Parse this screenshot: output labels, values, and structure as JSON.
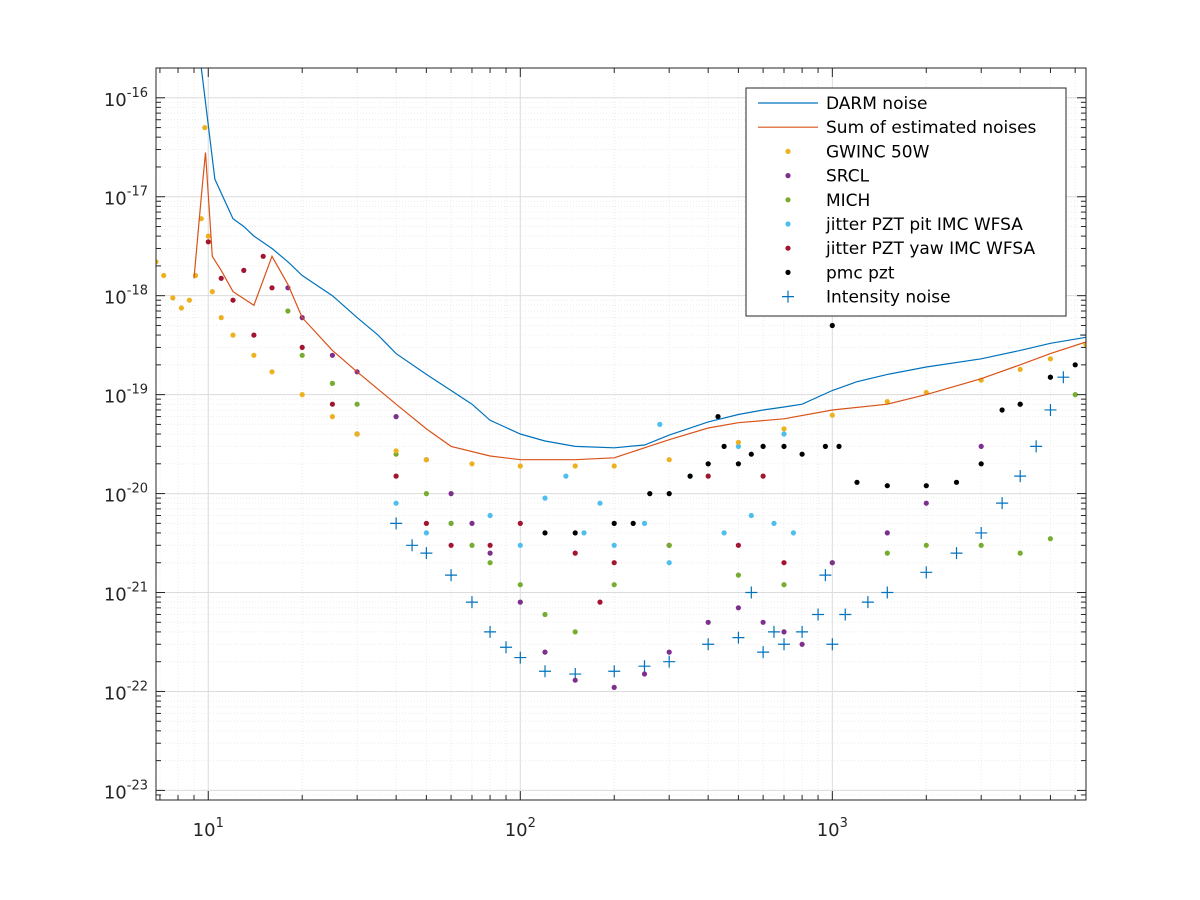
{
  "chart_data": {
    "type": "line",
    "title": "",
    "xlabel": "",
    "ylabel": "",
    "x_scale": "log",
    "y_scale": "log",
    "xlim": [
      6.8,
      6500
    ],
    "ylim": [
      8e-24,
      2e-16
    ],
    "grid": true,
    "minor_grid": true,
    "legend_position": "top-right",
    "x_ticks": [
      {
        "value": 10,
        "base": "10",
        "exp": "1"
      },
      {
        "value": 100,
        "base": "10",
        "exp": "2"
      },
      {
        "value": 1000,
        "base": "10",
        "exp": "3"
      }
    ],
    "y_ticks": [
      {
        "value": 1e-16,
        "base": "10",
        "exp": "-16"
      },
      {
        "value": 1e-17,
        "base": "10",
        "exp": "-17"
      },
      {
        "value": 1e-18,
        "base": "10",
        "exp": "-18"
      },
      {
        "value": 1e-19,
        "base": "10",
        "exp": "-19"
      },
      {
        "value": 1e-20,
        "base": "10",
        "exp": "-20"
      },
      {
        "value": 1e-21,
        "base": "10",
        "exp": "-21"
      },
      {
        "value": 1e-22,
        "base": "10",
        "exp": "-22"
      },
      {
        "value": 1e-23,
        "base": "10",
        "exp": "-23"
      }
    ],
    "series": [
      {
        "name": "DARM noise",
        "style": "line",
        "color": "#0072BD",
        "x": [
          9.5,
          10.5,
          12,
          13,
          14,
          16,
          18,
          20,
          25,
          30,
          35,
          40,
          50,
          60,
          70,
          80,
          100,
          120,
          150,
          200,
          250,
          300,
          400,
          500,
          600,
          700,
          800,
          1000,
          1200,
          1500,
          2000,
          3000,
          4000,
          5000,
          6500
        ],
        "y": [
          2e-16,
          1.5e-17,
          6e-18,
          5e-18,
          4e-18,
          3e-18,
          2.2e-18,
          1.6e-18,
          1e-18,
          6e-19,
          4e-19,
          2.6e-19,
          1.6e-19,
          1.1e-19,
          8e-20,
          5.5e-20,
          4e-20,
          3.4e-20,
          3e-20,
          2.9e-20,
          3.1e-20,
          3.9e-20,
          5.3e-20,
          6.3e-20,
          7e-20,
          7.5e-20,
          8e-20,
          1.1e-19,
          1.35e-19,
          1.6e-19,
          1.9e-19,
          2.3e-19,
          2.8e-19,
          3.3e-19,
          3.8e-19
        ]
      },
      {
        "name": "Sum of estimated noises",
        "style": "line",
        "color": "#D95319",
        "x": [
          9,
          9.5,
          9.8,
          10.3,
          11,
          12,
          14,
          16,
          18,
          20,
          25,
          30,
          40,
          50,
          60,
          80,
          100,
          150,
          200,
          250,
          300,
          400,
          500,
          700,
          1000,
          1500,
          2000,
          3000,
          4000,
          5000,
          6500
        ],
        "y": [
          1.5e-18,
          1e-17,
          2.8e-17,
          2.5e-18,
          1.8e-18,
          1.1e-18,
          8e-19,
          2.5e-18,
          1.3e-18,
          6e-19,
          2.8e-19,
          1.7e-19,
          8e-20,
          4.5e-20,
          3e-20,
          2.4e-20,
          2.2e-20,
          2.2e-20,
          2.3e-20,
          2.9e-20,
          3.5e-20,
          4.6e-20,
          5.2e-20,
          5.7e-20,
          7e-20,
          8e-20,
          1e-19,
          1.45e-19,
          2e-19,
          2.6e-19,
          3.4e-19
        ]
      },
      {
        "name": "GWINC 50W",
        "style": "dot",
        "color": "#EDB120",
        "x": [
          6.8,
          7.2,
          7.7,
          8.2,
          8.7,
          9.1,
          9.5,
          9.75,
          10.0,
          10.3,
          11,
          12,
          14,
          16,
          20,
          25,
          30,
          40,
          50,
          70,
          100,
          150,
          200,
          300,
          500,
          700,
          1000,
          1500,
          2000,
          3000,
          4000,
          5000,
          6500
        ],
        "y": [
          2.2e-18,
          1.6e-18,
          9.5e-19,
          7.5e-19,
          9e-19,
          1.6e-18,
          6e-18,
          5e-17,
          4e-18,
          1.1e-18,
          6e-19,
          4e-19,
          2.5e-19,
          1.7e-19,
          1e-19,
          6e-20,
          4e-20,
          2.7e-20,
          2.2e-20,
          2e-20,
          1.9e-20,
          1.9e-20,
          1.9e-20,
          2.2e-20,
          3.3e-20,
          4.5e-20,
          6.2e-20,
          8.5e-20,
          1.05e-19,
          1.4e-19,
          1.8e-19,
          2.3e-19,
          3.2e-19
        ]
      },
      {
        "name": "SRCL",
        "style": "dot",
        "color": "#7E2F8E",
        "x": [
          18,
          20,
          25,
          30,
          40,
          50,
          60,
          70,
          80,
          100,
          120,
          150,
          200,
          250,
          300,
          400,
          500,
          600,
          700,
          800,
          1000,
          1500,
          2000,
          3000,
          4000,
          5000
        ],
        "y": [
          1.2e-18,
          6e-19,
          2.5e-19,
          1.7e-19,
          6e-20,
          2.2e-20,
          1e-20,
          5e-21,
          2.5e-21,
          8e-22,
          2.5e-22,
          1.3e-22,
          1.1e-22,
          1.5e-22,
          2.5e-22,
          5e-22,
          7e-22,
          5e-22,
          4e-22,
          3e-22,
          2e-21,
          4e-21,
          8e-21,
          3e-20,
          8e-20,
          1.5e-19
        ]
      },
      {
        "name": "MICH",
        "style": "dot",
        "color": "#77AC30",
        "x": [
          18,
          20,
          25,
          30,
          40,
          50,
          60,
          70,
          80,
          100,
          120,
          150,
          200,
          300,
          500,
          700,
          1000,
          1500,
          2000,
          3000,
          4000,
          5000,
          6000
        ],
        "y": [
          7e-19,
          2.5e-19,
          1.3e-19,
          8e-20,
          2.5e-20,
          1e-20,
          5e-21,
          3e-21,
          2e-21,
          1.2e-21,
          6e-22,
          4e-22,
          1.2e-21,
          3e-21,
          1.5e-21,
          1.2e-21,
          2e-21,
          2.5e-21,
          3e-21,
          3e-21,
          2.5e-21,
          3.5e-21,
          1e-19
        ]
      },
      {
        "name": "jitter PZT pit IMC WFSA",
        "style": "dot",
        "color": "#4DBEEE",
        "x": [
          40,
          50,
          60,
          80,
          100,
          120,
          140,
          160,
          180,
          200,
          250,
          280,
          300,
          350,
          400,
          450,
          500,
          550,
          600,
          650,
          700,
          750
        ],
        "y": [
          8e-21,
          4e-21,
          5e-21,
          6e-21,
          3e-21,
          9e-21,
          1.5e-20,
          4e-21,
          8e-21,
          3e-21,
          5e-21,
          5e-20,
          2e-21,
          1.5e-20,
          2e-20,
          4e-21,
          3e-20,
          6e-21,
          3e-20,
          5e-21,
          4e-20,
          4e-21
        ]
      },
      {
        "name": "jitter PZT yaw IMC WFSA",
        "style": "dot",
        "color": "#A2142F",
        "x": [
          10,
          11,
          12,
          13,
          14,
          15,
          16,
          20,
          25,
          30,
          40,
          50,
          60,
          80,
          100,
          150,
          180,
          200,
          300,
          400,
          500,
          600,
          700
        ],
        "y": [
          3.5e-18,
          1.5e-18,
          9e-19,
          1.8e-18,
          4e-19,
          2.5e-18,
          1.2e-18,
          3e-19,
          8e-20,
          4e-20,
          1.5e-20,
          5e-21,
          3e-21,
          3e-21,
          5e-21,
          2.5e-21,
          8e-22,
          2e-21,
          3e-21,
          1.5e-20,
          3e-21,
          1.5e-20,
          2e-21
        ]
      },
      {
        "name": "pmc pzt",
        "style": "dot",
        "color": "#000000",
        "x": [
          120,
          150,
          200,
          230,
          260,
          300,
          350,
          400,
          430,
          450,
          500,
          550,
          600,
          700,
          800,
          950,
          1000,
          1050,
          1200,
          1500,
          2000,
          2500,
          3000,
          3500,
          4000,
          5000,
          6000
        ],
        "y": [
          4e-21,
          4e-21,
          5e-21,
          5e-21,
          1e-20,
          1e-20,
          1.5e-20,
          2e-20,
          6e-20,
          3e-20,
          2e-20,
          2.5e-20,
          3e-20,
          3e-20,
          2.5e-20,
          3e-20,
          5e-19,
          3e-20,
          1.3e-20,
          1.2e-20,
          1.2e-20,
          1.3e-20,
          2e-20,
          7e-20,
          8e-20,
          1.5e-19,
          2e-19
        ]
      },
      {
        "name": "Intensity noise",
        "style": "plus",
        "color": "#0072BD",
        "x": [
          40,
          45,
          50,
          60,
          70,
          80,
          90,
          100,
          120,
          150,
          200,
          250,
          300,
          400,
          500,
          550,
          600,
          650,
          700,
          800,
          900,
          950,
          1000,
          1100,
          1300,
          1500,
          2000,
          2500,
          3000,
          3500,
          4000,
          4500,
          5000,
          5500,
          6500
        ],
        "y": [
          5e-21,
          3e-21,
          2.5e-21,
          1.5e-21,
          8e-22,
          4e-22,
          2.8e-22,
          2.2e-22,
          1.6e-22,
          1.5e-22,
          1.6e-22,
          1.8e-22,
          2e-22,
          3e-22,
          3.5e-22,
          1e-21,
          2.5e-22,
          4e-22,
          3e-22,
          4e-22,
          6e-22,
          1.5e-21,
          3e-22,
          6e-22,
          8e-22,
          1e-21,
          1.6e-21,
          2.5e-21,
          4e-21,
          8e-21,
          1.5e-20,
          3e-20,
          7e-20,
          1.5e-19,
          4e-19
        ]
      }
    ]
  }
}
